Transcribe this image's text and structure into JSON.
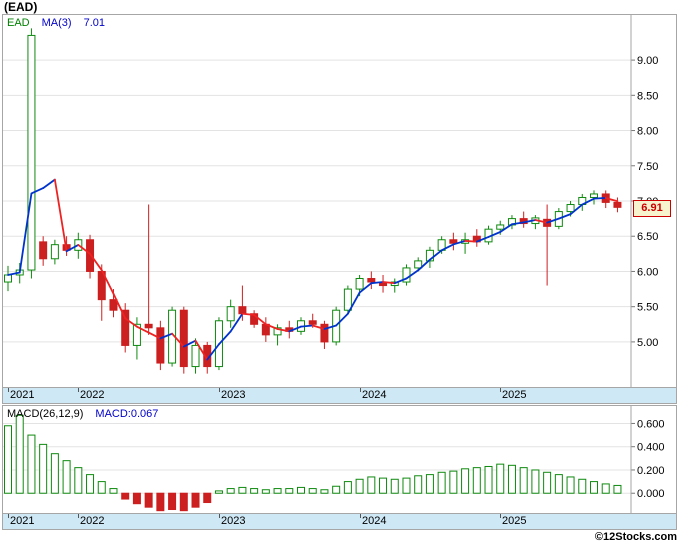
{
  "title": "(EAD)",
  "watermark": "©12Stocks.com",
  "colors": {
    "up": "#0e8a0e",
    "down": "#cc1f1f",
    "ma_rising": "#0033cc",
    "ma_falling": "#ee2222",
    "grid": "#e3e3e3",
    "axis_border": "#a6a6a6",
    "band_bg": "#cfe8f5",
    "badge_bg": "#f7f3cd",
    "badge_fg": "#cc0000",
    "legend_symbol": "#008000",
    "legend_ma": "#0000cc"
  },
  "price_chart": {
    "legend": {
      "symbol": "EAD",
      "ma_label": "MA(3)",
      "ma_value": "7.01"
    },
    "last_price_badge": "6.91"
  },
  "macd_chart": {
    "label": "MACD(26,12,9)",
    "value": "MACD:0.067"
  },
  "chart_data": [
    {
      "type": "candlestick",
      "title": "EAD monthly price with MA(3) overlay",
      "interval": "monthly",
      "range_start": "2021-07",
      "range_end": "2025-11",
      "ma_period": 3,
      "last_close": 6.91,
      "ylim": [
        4.36,
        9.64
      ],
      "y_ticks": [
        {
          "value": 9.0,
          "label": "9.00"
        },
        {
          "value": 8.5,
          "label": "8.50"
        },
        {
          "value": 8.0,
          "label": "8.00"
        },
        {
          "value": 7.5,
          "label": "7.50"
        },
        {
          "value": 7.0,
          "label": "7.00"
        },
        {
          "value": 6.5,
          "label": "6.50"
        },
        {
          "value": 6.0,
          "label": "6.00"
        },
        {
          "value": 5.5,
          "label": "5.50"
        },
        {
          "value": 5.0,
          "label": "5.00"
        }
      ],
      "year_ticks": [
        {
          "index": 0,
          "label": "2021"
        },
        {
          "index": 6,
          "label": "2022"
        },
        {
          "index": 18,
          "label": "2023"
        },
        {
          "index": 30,
          "label": "2024"
        },
        {
          "index": 42,
          "label": "2025"
        }
      ],
      "ohlc": [
        [
          5.85,
          6.08,
          5.72,
          5.95
        ],
        [
          5.95,
          6.12,
          5.83,
          6.02
        ],
        [
          6.02,
          9.45,
          5.9,
          9.35
        ],
        [
          6.42,
          6.5,
          6.08,
          6.18
        ],
        [
          6.18,
          6.45,
          6.1,
          6.38
        ],
        [
          6.38,
          6.5,
          6.22,
          6.3
        ],
        [
          6.3,
          6.55,
          6.18,
          6.45
        ],
        [
          6.45,
          6.52,
          5.9,
          6.0
        ],
        [
          6.0,
          6.1,
          5.3,
          5.6
        ],
        [
          5.6,
          5.75,
          5.35,
          5.45
        ],
        [
          5.45,
          5.55,
          4.85,
          4.95
        ],
        [
          4.95,
          5.35,
          4.75,
          5.25
        ],
        [
          5.25,
          6.95,
          5.1,
          5.2
        ],
        [
          5.2,
          5.3,
          4.6,
          4.7
        ],
        [
          4.7,
          5.5,
          4.65,
          5.45
        ],
        [
          5.45,
          5.5,
          4.55,
          4.65
        ],
        [
          4.65,
          5.05,
          4.55,
          4.95
        ],
        [
          4.95,
          5.0,
          4.55,
          4.65
        ],
        [
          4.65,
          5.35,
          4.6,
          5.3
        ],
        [
          5.3,
          5.6,
          5.2,
          5.5
        ],
        [
          5.5,
          5.8,
          5.3,
          5.4
        ],
        [
          5.4,
          5.45,
          5.2,
          5.25
        ],
        [
          5.25,
          5.35,
          5.0,
          5.1
        ],
        [
          5.1,
          5.25,
          4.95,
          5.2
        ],
        [
          5.2,
          5.3,
          5.05,
          5.15
        ],
        [
          5.15,
          5.35,
          5.1,
          5.3
        ],
        [
          5.3,
          5.4,
          5.2,
          5.25
        ],
        [
          5.25,
          5.3,
          4.9,
          5.0
        ],
        [
          5.0,
          5.5,
          4.95,
          5.45
        ],
        [
          5.45,
          5.8,
          5.4,
          5.75
        ],
        [
          5.75,
          5.95,
          5.65,
          5.9
        ],
        [
          5.9,
          6.0,
          5.75,
          5.85
        ],
        [
          5.85,
          5.95,
          5.7,
          5.8
        ],
        [
          5.8,
          5.9,
          5.7,
          5.85
        ],
        [
          5.85,
          6.1,
          5.8,
          6.05
        ],
        [
          6.05,
          6.2,
          6.0,
          6.15
        ],
        [
          6.15,
          6.35,
          6.05,
          6.3
        ],
        [
          6.3,
          6.5,
          6.25,
          6.45
        ],
        [
          6.45,
          6.55,
          6.3,
          6.4
        ],
        [
          6.4,
          6.55,
          6.25,
          6.45
        ],
        [
          6.5,
          6.6,
          6.35,
          6.42
        ],
        [
          6.42,
          6.65,
          6.38,
          6.6
        ],
        [
          6.6,
          6.72,
          6.52,
          6.66
        ],
        [
          6.66,
          6.8,
          6.6,
          6.75
        ],
        [
          6.75,
          6.85,
          6.62,
          6.68
        ],
        [
          6.68,
          6.8,
          6.6,
          6.76
        ],
        [
          6.74,
          6.95,
          5.8,
          6.64
        ],
        [
          6.64,
          6.9,
          6.6,
          6.85
        ],
        [
          6.85,
          7.0,
          6.78,
          6.95
        ],
        [
          6.95,
          7.1,
          6.86,
          7.05
        ],
        [
          7.05,
          7.15,
          6.95,
          7.1
        ],
        [
          7.1,
          7.15,
          6.9,
          6.98
        ],
        [
          6.98,
          7.05,
          6.84,
          6.91
        ]
      ]
    },
    {
      "type": "bar",
      "title": "MACD(26,12,9) histogram",
      "last_value": 0.067,
      "ylim": [
        -0.17,
        0.75
      ],
      "y_ticks": [
        {
          "value": 0.6,
          "label": "0.600"
        },
        {
          "value": 0.4,
          "label": "0.400"
        },
        {
          "value": 0.2,
          "label": "0.200"
        },
        {
          "value": 0.0,
          "label": "0.000"
        }
      ],
      "values": [
        0.58,
        0.67,
        0.5,
        0.42,
        0.34,
        0.28,
        0.22,
        0.16,
        0.1,
        0.04,
        -0.05,
        -0.09,
        -0.12,
        -0.15,
        -0.14,
        -0.15,
        -0.12,
        -0.08,
        0.02,
        0.04,
        0.05,
        0.04,
        0.03,
        0.04,
        0.04,
        0.05,
        0.04,
        0.03,
        0.06,
        0.1,
        0.12,
        0.14,
        0.13,
        0.12,
        0.13,
        0.15,
        0.16,
        0.18,
        0.19,
        0.21,
        0.22,
        0.23,
        0.25,
        0.24,
        0.22,
        0.2,
        0.18,
        0.16,
        0.14,
        0.12,
        0.1,
        0.08,
        0.067
      ]
    }
  ]
}
